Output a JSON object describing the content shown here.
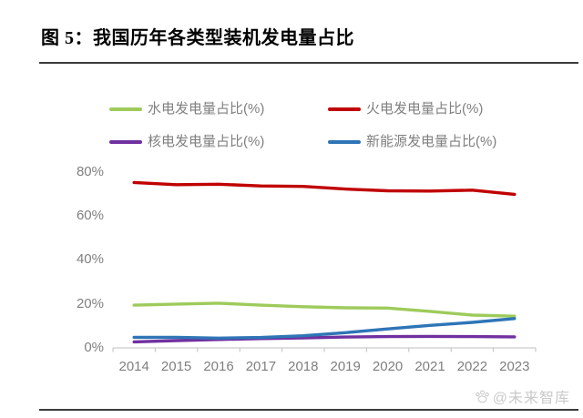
{
  "figure": {
    "title": "图 5：我国历年各类型装机发电量占比",
    "watermark": "@未来智库",
    "watermark_icon": "paw-icon"
  },
  "chart_data": {
    "type": "line",
    "x": [
      "2014",
      "2015",
      "2016",
      "2017",
      "2018",
      "2019",
      "2020",
      "2021",
      "2022",
      "2023"
    ],
    "series": [
      {
        "key": "hydro",
        "name": "水电发电量占比(%)",
        "color": "#9ecb5b",
        "values": [
          19.0,
          19.5,
          19.9,
          19.0,
          18.3,
          17.8,
          17.7,
          16.2,
          14.5,
          14.0
        ]
      },
      {
        "key": "thermal",
        "name": "火电发电量占比(%)",
        "color": "#c00000",
        "values": [
          74.8,
          73.8,
          74.0,
          73.2,
          73.0,
          71.8,
          71.0,
          70.9,
          71.3,
          69.4
        ]
      },
      {
        "key": "nuclear",
        "name": "核电发电量占比(%)",
        "color": "#7030a0",
        "values": [
          2.3,
          2.9,
          3.4,
          3.8,
          4.1,
          4.5,
          4.7,
          4.8,
          4.7,
          4.6
        ]
      },
      {
        "key": "new-energy",
        "name": "新能源发电量占比(%)",
        "color": "#2e75b6",
        "values": [
          4.4,
          4.4,
          4.0,
          4.3,
          5.1,
          6.5,
          8.2,
          9.8,
          11.2,
          12.9
        ]
      }
    ],
    "title": "",
    "xlabel": "",
    "ylabel": "",
    "ylim": [
      0,
      80
    ],
    "yticks": [
      "0%",
      "20%",
      "40%",
      "60%",
      "80%"
    ],
    "ytick_values": [
      0,
      20,
      40,
      60,
      80
    ],
    "grid": false,
    "legend_position": "top",
    "legend_rows": 2,
    "legend_cols": 2,
    "axis_color": "#bfbfbf",
    "tick_label_color": "#7f7f7f"
  }
}
